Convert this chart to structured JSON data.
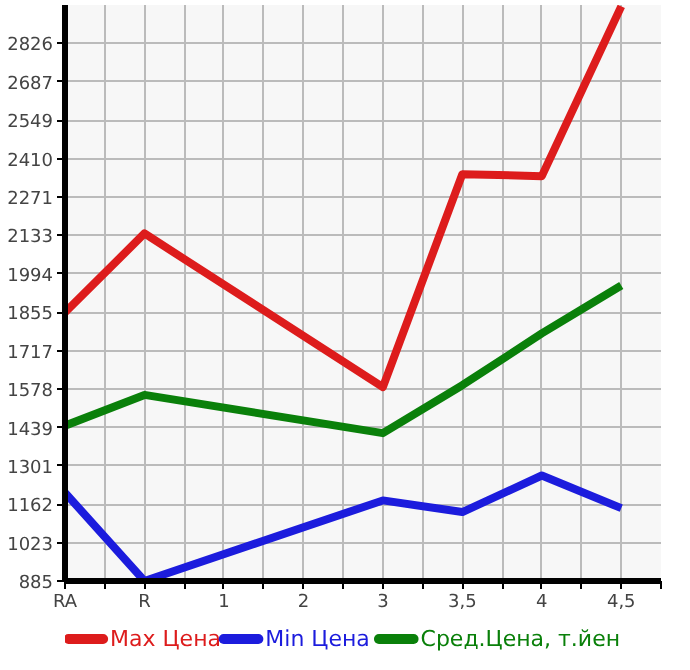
{
  "chart_data": {
    "type": "line",
    "categories": [
      "RA",
      "R",
      "1",
      "2",
      "3",
      "3,5",
      "4",
      "4,5"
    ],
    "series": [
      {
        "name": "Max Цена",
        "color": "#dd1c1c",
        "values": [
          1855,
          2140,
          null,
          null,
          1585,
          2354,
          2347,
          2960
        ]
      },
      {
        "name": "Min Цена",
        "color": "#1c1cdd",
        "values": [
          1204,
          885,
          null,
          null,
          1176,
          1134,
          1266,
          1148
        ]
      },
      {
        "name": "Сред.Цена, т.йен",
        "color": "#0a800a",
        "values": [
          1446,
          1557,
          null,
          null,
          1419,
          1592,
          1779,
          1952
        ]
      }
    ],
    "ylim": [
      885,
      2965
    ],
    "yticks": [
      885,
      1023,
      1162,
      1301,
      1439,
      1578,
      1717,
      1855,
      1994,
      2133,
      2271,
      2410,
      2549,
      2687,
      2826
    ],
    "grid": true,
    "legend": "bottom",
    "marker": "none",
    "line_style": "solid"
  }
}
